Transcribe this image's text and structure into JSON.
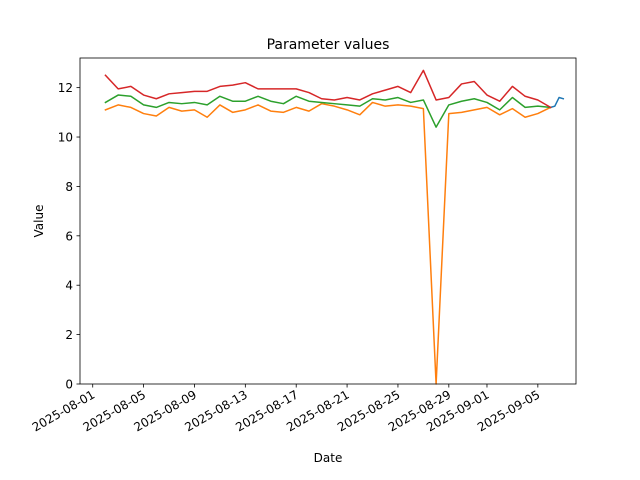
{
  "chart_data": {
    "type": "line",
    "title": "Parameter values",
    "xlabel": "Date",
    "ylabel": "Value",
    "grid": false,
    "legend": "none",
    "xlim": [
      "2025-07-31",
      "2025-09-08"
    ],
    "ylim": [
      0,
      13.2
    ],
    "xticks": [
      "2025-08-01",
      "2025-08-05",
      "2025-08-09",
      "2025-08-13",
      "2025-08-17",
      "2025-08-21",
      "2025-08-25",
      "2025-08-29",
      "2025-09-01",
      "2025-09-05"
    ],
    "yticks": [
      0,
      2,
      4,
      6,
      8,
      10,
      12
    ],
    "series": [
      {
        "color": "#1f77b4",
        "x": [
          "2025-09-06",
          "2025-09-06T08",
          "2025-09-06T16",
          "2025-09-07"
        ],
        "y": [
          11.2,
          11.25,
          11.6,
          11.55
        ]
      },
      {
        "color": "#ff7f0e",
        "x": [
          "2025-08-02",
          "2025-08-03",
          "2025-08-04",
          "2025-08-05",
          "2025-08-06",
          "2025-08-07",
          "2025-08-08",
          "2025-08-09",
          "2025-08-10",
          "2025-08-11",
          "2025-08-12",
          "2025-08-13",
          "2025-08-14",
          "2025-08-15",
          "2025-08-16",
          "2025-08-17",
          "2025-08-18",
          "2025-08-19",
          "2025-08-20",
          "2025-08-21",
          "2025-08-22",
          "2025-08-23",
          "2025-08-24",
          "2025-08-25",
          "2025-08-26",
          "2025-08-27",
          "2025-08-28",
          "2025-08-29",
          "2025-08-30",
          "2025-08-31",
          "2025-09-01",
          "2025-09-02",
          "2025-09-03",
          "2025-09-04",
          "2025-09-05",
          "2025-09-06"
        ],
        "y": [
          11.1,
          11.3,
          11.2,
          10.95,
          10.85,
          11.2,
          11.05,
          11.1,
          10.8,
          11.3,
          11.0,
          11.1,
          11.3,
          11.05,
          11.0,
          11.2,
          11.05,
          11.35,
          11.25,
          11.1,
          10.9,
          11.4,
          11.25,
          11.3,
          11.25,
          11.15,
          0.0,
          10.95,
          11.0,
          11.1,
          11.2,
          10.9,
          11.15,
          10.8,
          10.95,
          11.2
        ]
      },
      {
        "color": "#2ca02c",
        "x": [
          "2025-08-02",
          "2025-08-03",
          "2025-08-04",
          "2025-08-05",
          "2025-08-06",
          "2025-08-07",
          "2025-08-08",
          "2025-08-09",
          "2025-08-10",
          "2025-08-11",
          "2025-08-12",
          "2025-08-13",
          "2025-08-14",
          "2025-08-15",
          "2025-08-16",
          "2025-08-17",
          "2025-08-18",
          "2025-08-19",
          "2025-08-20",
          "2025-08-21",
          "2025-08-22",
          "2025-08-23",
          "2025-08-24",
          "2025-08-25",
          "2025-08-26",
          "2025-08-27",
          "2025-08-28",
          "2025-08-29",
          "2025-08-30",
          "2025-08-31",
          "2025-09-01",
          "2025-09-02",
          "2025-09-03",
          "2025-09-04",
          "2025-09-05",
          "2025-09-06"
        ],
        "y": [
          11.4,
          11.7,
          11.65,
          11.3,
          11.2,
          11.4,
          11.35,
          11.4,
          11.3,
          11.65,
          11.45,
          11.45,
          11.65,
          11.45,
          11.35,
          11.65,
          11.45,
          11.4,
          11.35,
          11.3,
          11.25,
          11.55,
          11.5,
          11.6,
          11.4,
          11.5,
          10.4,
          11.3,
          11.45,
          11.55,
          11.4,
          11.1,
          11.6,
          11.2,
          11.25,
          11.2
        ]
      },
      {
        "color": "#d62728",
        "x": [
          "2025-08-02",
          "2025-08-03",
          "2025-08-04",
          "2025-08-05",
          "2025-08-06",
          "2025-08-07",
          "2025-08-08",
          "2025-08-09",
          "2025-08-10",
          "2025-08-11",
          "2025-08-12",
          "2025-08-13",
          "2025-08-14",
          "2025-08-15",
          "2025-08-16",
          "2025-08-17",
          "2025-08-18",
          "2025-08-19",
          "2025-08-20",
          "2025-08-21",
          "2025-08-22",
          "2025-08-23",
          "2025-08-24",
          "2025-08-25",
          "2025-08-26",
          "2025-08-27",
          "2025-08-28",
          "2025-08-29",
          "2025-08-30",
          "2025-08-31",
          "2025-09-01",
          "2025-09-02",
          "2025-09-03",
          "2025-09-04",
          "2025-09-05",
          "2025-09-06"
        ],
        "y": [
          12.5,
          11.95,
          12.05,
          11.7,
          11.55,
          11.75,
          11.8,
          11.85,
          11.85,
          12.05,
          12.1,
          12.2,
          11.95,
          11.95,
          11.95,
          11.95,
          11.8,
          11.55,
          11.5,
          11.6,
          11.5,
          11.75,
          11.9,
          12.05,
          11.8,
          12.7,
          11.5,
          11.6,
          12.15,
          12.25,
          11.7,
          11.45,
          12.05,
          11.65,
          11.5,
          11.2
        ]
      }
    ]
  }
}
